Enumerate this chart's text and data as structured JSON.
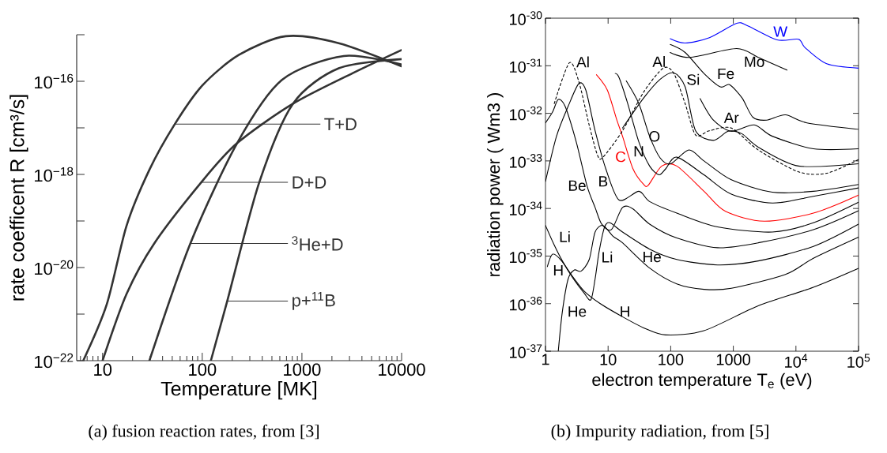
{
  "chart_data": [
    {
      "type": "line",
      "xlabel": "Temperature [MK]",
      "ylabel": "rate coefficent R [cm³/s]",
      "log": "xy",
      "xlim": [
        5.5,
        10000
      ],
      "ylim": [
        1e-22,
        1e-15
      ],
      "xticks": [
        10,
        100,
        1000,
        10000
      ],
      "yticks": [
        {
          "value": 1e-22,
          "label": "10$^{−22}$"
        },
        {
          "value": 1e-21,
          "label": null
        },
        {
          "value": 1e-20,
          "label": "10$^{−20}$"
        },
        {
          "value": 1e-19,
          "label": null
        },
        {
          "value": 1e-18,
          "label": "10$^{−18}$"
        },
        {
          "value": 1e-17,
          "label": null
        },
        {
          "value": 1e-16,
          "label": "10$^{−16}$"
        },
        {
          "value": 1e-15,
          "label": null
        }
      ],
      "series": [
        {
          "color": "#333333",
          "x": [
            6.4,
            11,
            17.4,
            29.5,
            53,
            100,
            234,
            690,
            2340,
            10000
          ],
          "values": [
            1e-22,
            1.6e-21,
            7.9e-20,
            1.26e-18,
            1.2e-17,
            8.1e-17,
            3.7e-16,
            9.3e-16,
            6.6e-16,
            2.1e-16
          ]
        },
        {
          "color": "#333333",
          "x": [
            10,
            17.4,
            33,
            98,
            224,
            813,
            3240,
            10000
          ],
          "values": [
            1e-22,
            2.7e-21,
            3.3e-20,
            6.8e-19,
            4.7e-18,
            3.3e-17,
            1.5e-16,
            4.7e-16
          ]
        },
        {
          "color": "#333333",
          "x": [
            29.5,
            76,
            224,
            630,
            2630,
            10000
          ],
          "values": [
            1e-22,
            3.3e-20,
            4.7e-18,
            1.07e-16,
            3.5e-16,
            2.3e-16
          ]
        },
        {
          "color": "#333333",
          "x": [
            122,
            178,
            372,
            813,
            2340,
            10000
          ],
          "values": [
            1e-22,
            1.9e-21,
            6.6e-19,
            3.3e-17,
            1.9e-16,
            3e-16
          ]
        }
      ],
      "annotations": [
        {
          "text": "T+D",
          "x": 53,
          "y": 1.2e-17
        },
        "D+D",
        {
          "text": "$^{3}$He+D",
          "x": 76,
          "y": 3.3e-20
        },
        "p+$^{11}$B",
        "(a) fusion reaction rates, from [3]"
      ]
    },
    {
      "type": "line",
      "xlabel": "electron temperature T$_{e}$ (eV)",
      "ylabel": "radiation power ( Wm3 )",
      "log": "xy",
      "xlim": [
        1,
        100000
      ],
      "ylim": [
        1e-37,
        1e-30
      ],
      "xticks": [
        1,
        10,
        100,
        1000,
        {
          "value": 10000,
          "label": "10$^{4}$"
        },
        {
          "value": 100000,
          "label": "10$^{5}$"
        }
      ],
      "yticks": [
        {
          "value": 1e-37,
          "label": "10$^{-37}$"
        },
        {
          "value": 1e-36,
          "label": "10$^{-36}$"
        },
        {
          "value": 1e-35,
          "label": "10$^{-35}$"
        },
        {
          "value": 1e-34,
          "label": "10$^{-34}$"
        },
        {
          "value": 1e-33,
          "label": "10$^{-33}$"
        },
        {
          "value": 1e-32,
          "label": "10$^{-32}$"
        },
        {
          "value": 1e-31,
          "label": "10$^{-31}$"
        },
        {
          "value": 1e-30,
          "label": "10$^{-30}$"
        }
      ],
      "series": [
        {
          "color": "#000000",
          "x": [
            1.07,
            1.3,
            1.8,
            2.8,
            4.2,
            7.5,
            17,
            37,
            83,
            340,
            2500,
            19000,
            100000
          ],
          "values": [
            6e-36,
            1.1e-35,
            8e-36,
            3.5e-36,
            1.8e-36,
            1e-36,
            5.3e-37,
            3.1e-37,
            2.2e-37,
            2.7e-37,
            9e-37,
            2.2e-36,
            5.5e-36
          ]
        },
        {
          "color": "#000000",
          "x": [
            1.6,
            1.86,
            2.3,
            2.9,
            3.7,
            5,
            6.2,
            8.3,
            12,
            17,
            46,
            125,
            340,
            930,
            6800,
            19000,
            100000
          ],
          "values": [
            1e-37,
            6.8e-37,
            3.3e-36,
            5.1e-36,
            4.8e-36,
            8.5e-36,
            3.2e-35,
            4.4e-35,
            2.6e-35,
            1.9e-35,
            5.6e-36,
            2.6e-36,
            2e-36,
            2.1e-36,
            4.1e-36,
            9e-36,
            2.5e-35
          ]
        },
        {
          "color": "#000000",
          "x": [
            1,
            1.38,
            1.86,
            2.8,
            4.1,
            5.3,
            6.2,
            7.2,
            8.8,
            10.7,
            17,
            46,
            125,
            560,
            2500,
            19000,
            100000
          ],
          "values": [
            4.4e-35,
            1.7e-35,
            7.9e-36,
            3.3e-36,
            1.7e-36,
            1.2e-36,
            3.3e-36,
            1.26e-35,
            4.1e-35,
            5e-35,
            3.2e-35,
            1.4e-35,
            8.5e-36,
            6.5e-36,
            7.9e-36,
            1.6e-35,
            4.7e-35
          ]
        },
        {
          "color": "#000000",
          "x": [
            1,
            1.3,
            1.6,
            2.06,
            3.1,
            4.6,
            6.2,
            7.9,
            11.3,
            17,
            25,
            46,
            125,
            560,
            2500,
            19000,
            100000
          ],
          "values": [
            6.3e-33,
            1.07e-32,
            1.95e-32,
            1.4e-32,
            2.5e-33,
            3e-34,
            1.05e-34,
            4.7e-35,
            3.6e-35,
            1.05e-34,
            9.8e-35,
            4.7e-35,
            2.4e-35,
            1.5e-35,
            1.9e-35,
            3.6e-35,
            9e-35
          ]
        },
        {
          "color": "#000000",
          "x": [
            1,
            1.5,
            2.3,
            3.4,
            4.4,
            6.2,
            9.2,
            15,
            31,
            46,
            125,
            560,
            4200,
            19000,
            100000
          ],
          "values": [
            3.7e-34,
            3.3e-33,
            1.4e-32,
            4.2e-32,
            3.1e-32,
            4.3e-33,
            6.8e-34,
            1.5e-34,
            2.3e-34,
            1.4e-34,
            8e-35,
            4.1e-35,
            3.2e-35,
            5e-35,
            1.35e-34
          ]
        },
        {
          "name": "C",
          "color": "#ff0000",
          "x": [
            6.5,
            9.7,
            13.8,
            17,
            25,
            37,
            44,
            72,
            125,
            340,
            750,
            3100,
            19000,
            100000
          ],
          "values": [
            6.5e-32,
            3.1e-32,
            7.2e-33,
            3.3e-33,
            6.8e-34,
            3.2e-34,
            3.1e-34,
            7.8e-34,
            7.8e-34,
            2.3e-34,
            8.7e-35,
            5.4e-35,
            8e-35,
            1.9e-34
          ]
        },
        {
          "color": "#000000",
          "x": [
            13,
            15,
            20.6,
            31,
            46,
            65,
            83,
            125,
            340,
            930,
            4200,
            19000,
            100000
          ],
          "values": [
            6.9e-32,
            5.6e-32,
            1.6e-32,
            2.5e-33,
            7.8e-34,
            5.1e-34,
            6.8e-34,
            1.2e-33,
            5.1e-34,
            2e-34,
            1.3e-34,
            1.8e-34,
            2.7e-34
          ]
        },
        {
          "color": "#000000",
          "x": [
            19.5,
            31,
            46,
            68,
            100,
            195,
            340,
            930,
            4200,
            19000,
            100000
          ],
          "values": [
            4.8e-32,
            1.6e-32,
            3.3e-33,
            1.15e-33,
            8.7e-34,
            1.7e-33,
            1e-33,
            4e-34,
            2.2e-34,
            2.3e-34,
            3.2e-34
          ]
        },
        {
          "color": "#000000",
          "line_style": "dashed",
          "x": [
            1.38,
            2.4,
            3.4,
            5,
            6.8,
            8.3,
            17,
            37,
            76,
            112,
            170,
            250,
            415,
            930,
            2500,
            11000,
            31000,
            100000
          ],
          "values": [
            1.6e-32,
            1.15e-31,
            4.7e-32,
            5.6e-33,
            1.3e-33,
            1.2e-33,
            4.3e-33,
            2.8e-32,
            8.9e-32,
            6.9e-32,
            1.6e-32,
            3.5e-33,
            4.3e-33,
            4.9e-33,
            1.7e-33,
            5.9e-34,
            5.5e-34,
            1.07e-33
          ]
        },
        {
          "color": "#000000",
          "x": [
            17,
            37,
            68,
            112,
            170,
            250,
            480,
            830,
            1380,
            2500,
            11000,
            100000
          ],
          "values": [
            4.9e-33,
            2.1e-32,
            5.2e-32,
            7.1e-32,
            3.6e-32,
            4.3e-33,
            2.7e-33,
            4.2e-33,
            3.7e-33,
            1.95e-33,
            7.8e-34,
            8.7e-34
          ]
        },
        {
          "color": "#000000",
          "x": [
            295,
            480,
            930,
            2150,
            4200,
            19000,
            100000
          ],
          "values": [
            2.04e-32,
            7.2e-33,
            4.2e-33,
            5.7e-33,
            3.3e-33,
            1.8e-33,
            1.8e-33
          ]
        },
        {
          "color": "#000000",
          "x": [
            98,
            170,
            340,
            620,
            870,
            1380,
            2050,
            3400,
            6800,
            15000,
            100000
          ],
          "values": [
            2.8e-31,
            1.9e-31,
            6.9e-32,
            3.6e-32,
            4e-32,
            2.1e-32,
            8.3e-33,
            7.2e-33,
            9.3e-33,
            6.3e-33,
            4.6e-33
          ]
        },
        {
          "color": "#000000",
          "x": [
            98,
            205,
            1130,
            2500,
            7200
          ],
          "values": [
            1.9e-31,
            1.5e-31,
            2.3e-31,
            1.5e-31,
            8.1e-32
          ]
        },
        {
          "name": "W",
          "color": "#0000ff",
          "x": [
            98,
            170,
            415,
            1130,
            1700,
            5000,
            11000,
            14000,
            31000,
            100000
          ],
          "values": [
            3.7e-31,
            3e-31,
            3.9e-31,
            7.8e-31,
            6.9e-31,
            3.5e-31,
            3.6e-31,
            2.4e-31,
            1.1e-31,
            8.9e-32
          ]
        }
      ],
      "annotations": [
        "Al",
        "Al",
        "Si",
        "Fe",
        "Mo",
        "Ar",
        "O",
        "N",
        "B",
        "Be",
        "Li",
        "Li",
        "He",
        "H",
        "He",
        "H",
        "(b) Impurity radiation, from [5]"
      ]
    }
  ]
}
